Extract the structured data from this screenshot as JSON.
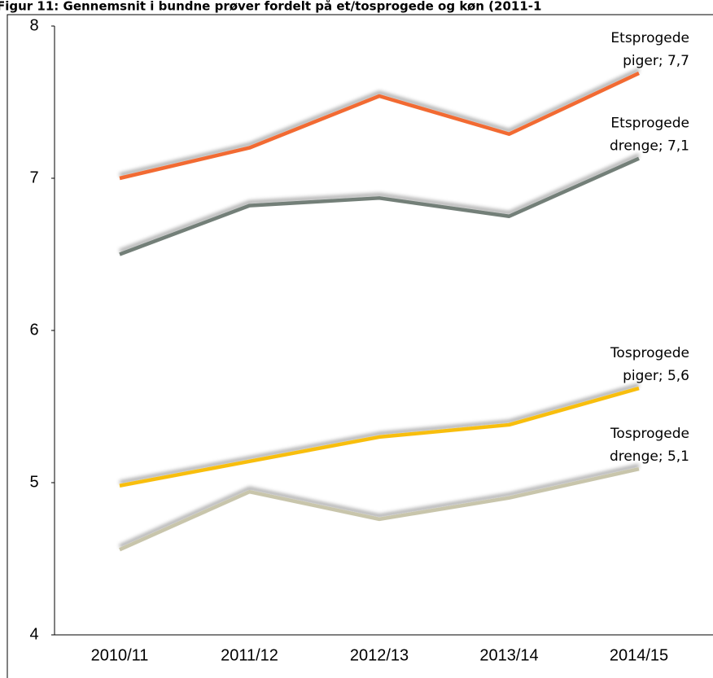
{
  "chart_data": {
    "type": "line",
    "title": "Figur 11: Gennemsnit i bundne prøver fordelt på et/tosprogede og køn (2011-1",
    "categories": [
      "2010/11",
      "2011/12",
      "2012/13",
      "2013/14",
      "2014/15"
    ],
    "series": [
      {
        "label_lines": [
          "Etsprogede",
          "piger; 7,7"
        ],
        "color": "#f26b30",
        "values": [
          7.0,
          7.2,
          7.54,
          7.29,
          7.69
        ]
      },
      {
        "label_lines": [
          "Etsprogede",
          "drenge; 7,1"
        ],
        "color": "#737f78",
        "values": [
          6.5,
          6.82,
          6.87,
          6.75,
          7.13
        ]
      },
      {
        "label_lines": [
          "Tosprogede",
          "piger; 5,6"
        ],
        "color": "#f8be0e",
        "values": [
          4.98,
          5.14,
          5.3,
          5.38,
          5.62
        ]
      },
      {
        "label_lines": [
          "Tosprogede",
          "drenge; 5,1"
        ],
        "color": "#c8c5ab",
        "values": [
          4.56,
          4.94,
          4.76,
          4.9,
          5.09
        ]
      }
    ],
    "ylim": [
      4,
      8
    ],
    "yticks": [
      4,
      5,
      6,
      7,
      8
    ],
    "grid": false
  }
}
